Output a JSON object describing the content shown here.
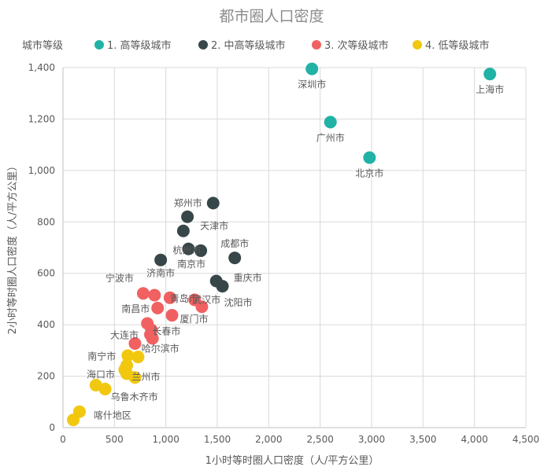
{
  "chart_data": {
    "type": "scatter",
    "title": "都市圈人口密度",
    "xlabel": "1小时等时圈人口密度（人/平方公里）",
    "ylabel": "2小时等时圈人口密度（人/平方公里）",
    "xlim": [
      0,
      4500
    ],
    "ylim": [
      0,
      1400
    ],
    "xticks": [
      0,
      500,
      1000,
      1500,
      2000,
      2500,
      3000,
      3500,
      4000,
      4500
    ],
    "yticks": [
      0,
      200,
      400,
      600,
      800,
      1000,
      1200,
      1400
    ],
    "xtick_labels": [
      "0",
      "500",
      "1,000",
      "1,500",
      "2,000",
      "2,500",
      "3,000",
      "3,500",
      "4,000",
      "4,500"
    ],
    "ytick_labels": [
      "0",
      "200",
      "400",
      "600",
      "800",
      "1,000",
      "1,200",
      "1,400"
    ],
    "legend_title": "城市等级",
    "legend_position": "top",
    "grid": true,
    "series": [
      {
        "name": "1. 高等级城市",
        "color": "#21b2a6",
        "points": [
          {
            "x": 2420,
            "y": 1395,
            "label": "深圳市"
          },
          {
            "x": 4150,
            "y": 1375,
            "label": "上海市"
          },
          {
            "x": 2600,
            "y": 1188,
            "label": "广州市"
          },
          {
            "x": 2980,
            "y": 1050,
            "label": "北京市"
          }
        ]
      },
      {
        "name": "2. 中高等级城市",
        "color": "#374649",
        "points": [
          {
            "x": 1460,
            "y": 873,
            "label": "郑州市"
          },
          {
            "x": 1210,
            "y": 820,
            "label": "天津市"
          },
          {
            "x": 1170,
            "y": 765,
            "label": ""
          },
          {
            "x": 1220,
            "y": 695,
            "label": "杭州市"
          },
          {
            "x": 1340,
            "y": 688,
            "label": "南京市"
          },
          {
            "x": 1670,
            "y": 660,
            "label": "成都市"
          },
          {
            "x": 950,
            "y": 652,
            "label": "济南市"
          },
          {
            "x": 1490,
            "y": 570,
            "label": "重庆市"
          },
          {
            "x": 1550,
            "y": 550,
            "label": "沈阳市"
          }
        ]
      },
      {
        "name": "3. 次等级城市",
        "color": "#f16161",
        "points": [
          {
            "x": 780,
            "y": 522,
            "label": "宁波市"
          },
          {
            "x": 890,
            "y": 515,
            "label": ""
          },
          {
            "x": 1040,
            "y": 505,
            "label": "青岛市"
          },
          {
            "x": 1280,
            "y": 497,
            "label": "武汉市"
          },
          {
            "x": 920,
            "y": 465,
            "label": "南昌市"
          },
          {
            "x": 1350,
            "y": 470,
            "label": ""
          },
          {
            "x": 1060,
            "y": 437,
            "label": "厦门市"
          },
          {
            "x": 820,
            "y": 405,
            "label": ""
          },
          {
            "x": 860,
            "y": 380,
            "label": "长春市"
          },
          {
            "x": 850,
            "y": 362,
            "label": "大连市"
          },
          {
            "x": 870,
            "y": 347,
            "label": "哈尔滨市"
          },
          {
            "x": 700,
            "y": 327,
            "label": ""
          }
        ]
      },
      {
        "name": "4. 低等级城市",
        "color": "#f2c80f",
        "points": [
          {
            "x": 630,
            "y": 280,
            "label": "南宁市"
          },
          {
            "x": 730,
            "y": 275,
            "label": ""
          },
          {
            "x": 620,
            "y": 242,
            "label": ""
          },
          {
            "x": 600,
            "y": 225,
            "label": "兰州市"
          },
          {
            "x": 620,
            "y": 210,
            "label": "海口市"
          },
          {
            "x": 700,
            "y": 195,
            "label": ""
          },
          {
            "x": 320,
            "y": 165,
            "label": ""
          },
          {
            "x": 410,
            "y": 150,
            "label": "乌鲁木齐市"
          },
          {
            "x": 160,
            "y": 62,
            "label": "喀什地区"
          },
          {
            "x": 100,
            "y": 30,
            "label": ""
          }
        ]
      }
    ]
  }
}
